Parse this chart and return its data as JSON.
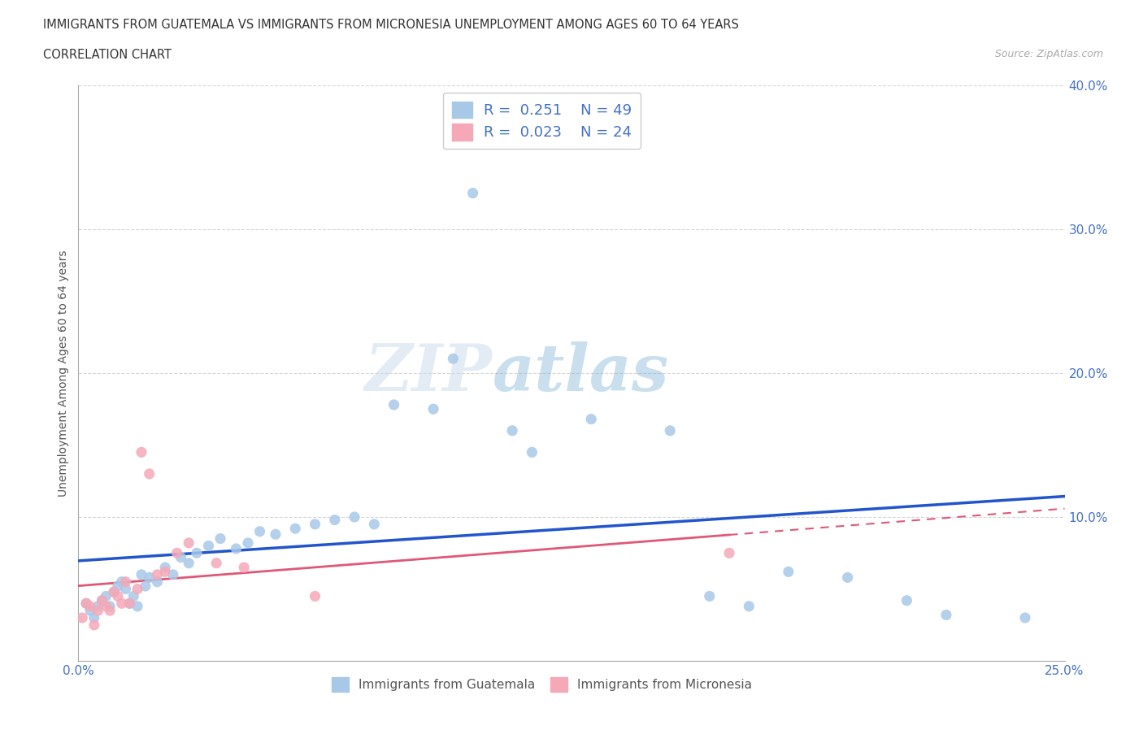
{
  "title_line1": "IMMIGRANTS FROM GUATEMALA VS IMMIGRANTS FROM MICRONESIA UNEMPLOYMENT AMONG AGES 60 TO 64 YEARS",
  "title_line2": "CORRELATION CHART",
  "source_text": "Source: ZipAtlas.com",
  "ylabel": "Unemployment Among Ages 60 to 64 years",
  "xmin": 0.0,
  "xmax": 0.25,
  "ymin": 0.0,
  "ymax": 0.4,
  "guatemala_color": "#a8c8e8",
  "micronesia_color": "#f4a8b8",
  "guatemala_line_color": "#2255cc",
  "micronesia_line_color": "#e05878",
  "legend_guatemala_label": "Immigrants from Guatemala",
  "legend_micronesia_label": "Immigrants from Micronesia",
  "guatemala_R": 0.251,
  "guatemala_N": 49,
  "micronesia_R": 0.023,
  "micronesia_N": 24,
  "watermark_text": "ZIPatlas",
  "guatemala_x": [
    0.002,
    0.003,
    0.004,
    0.005,
    0.006,
    0.007,
    0.008,
    0.009,
    0.01,
    0.011,
    0.012,
    0.013,
    0.014,
    0.015,
    0.016,
    0.017,
    0.018,
    0.02,
    0.022,
    0.024,
    0.026,
    0.028,
    0.03,
    0.033,
    0.036,
    0.04,
    0.043,
    0.046,
    0.05,
    0.055,
    0.06,
    0.065,
    0.07,
    0.075,
    0.08,
    0.09,
    0.095,
    0.1,
    0.11,
    0.115,
    0.13,
    0.15,
    0.16,
    0.17,
    0.18,
    0.195,
    0.21,
    0.22,
    0.24
  ],
  "guatemala_y": [
    0.04,
    0.035,
    0.03,
    0.038,
    0.042,
    0.045,
    0.038,
    0.048,
    0.052,
    0.055,
    0.05,
    0.04,
    0.045,
    0.038,
    0.06,
    0.052,
    0.058,
    0.055,
    0.065,
    0.06,
    0.072,
    0.068,
    0.075,
    0.08,
    0.085,
    0.078,
    0.082,
    0.09,
    0.088,
    0.092,
    0.095,
    0.098,
    0.1,
    0.095,
    0.178,
    0.175,
    0.21,
    0.325,
    0.16,
    0.145,
    0.168,
    0.16,
    0.045,
    0.038,
    0.062,
    0.058,
    0.042,
    0.032,
    0.03
  ],
  "micronesia_x": [
    0.001,
    0.002,
    0.003,
    0.004,
    0.005,
    0.006,
    0.007,
    0.008,
    0.009,
    0.01,
    0.011,
    0.012,
    0.013,
    0.015,
    0.016,
    0.018,
    0.02,
    0.022,
    0.025,
    0.028,
    0.035,
    0.042,
    0.06,
    0.165
  ],
  "micronesia_y": [
    0.03,
    0.04,
    0.038,
    0.025,
    0.035,
    0.042,
    0.038,
    0.035,
    0.048,
    0.045,
    0.04,
    0.055,
    0.04,
    0.05,
    0.145,
    0.13,
    0.06,
    0.062,
    0.075,
    0.082,
    0.068,
    0.065,
    0.045,
    0.075
  ]
}
